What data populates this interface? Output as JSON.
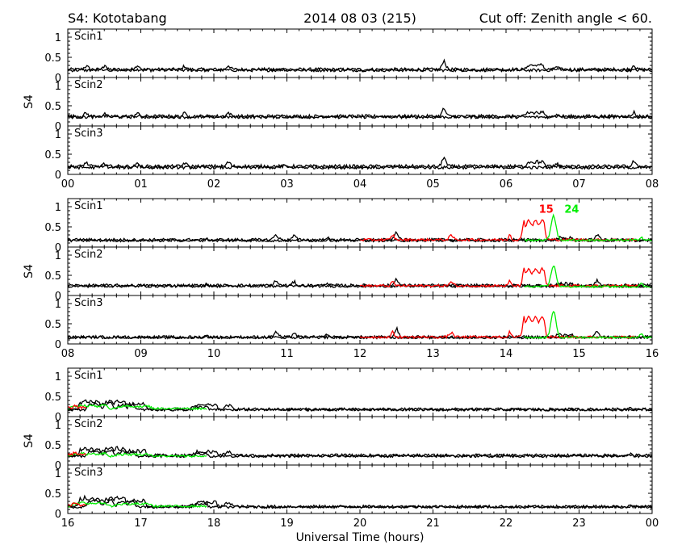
{
  "header": {
    "left": "S4: Kototabang",
    "center": "2014 08 03 (215)",
    "right": "Cut off: Zenith angle < 60."
  },
  "colors": {
    "background": "#ffffff",
    "axis": "#000000",
    "prn15": "#ff0000",
    "prn24": "#00ee00",
    "other": "#000000"
  },
  "chart_data": {
    "type": "line",
    "title": "S4: Kototabang",
    "date_label": "2014 08 03 (215)",
    "cutoff_label": "Cut off: Zenith angle < 60.",
    "xlabel": "Universal Time (hours)",
    "ylabel": "S4",
    "ylim": [
      0,
      1.2
    ],
    "yticks": [
      "1",
      "0.5",
      "0"
    ],
    "row_labels": [
      "Scin1",
      "Scin2",
      "Scin3"
    ],
    "annotations": [
      {
        "text": "15",
        "color": "#ff0000",
        "x": 14.45,
        "y": 0.85,
        "group": 1,
        "row": 0
      },
      {
        "text": "24",
        "color": "#00ee00",
        "x": 14.8,
        "y": 0.85,
        "group": 1,
        "row": 0
      }
    ],
    "groups": [
      {
        "x_range": [
          0,
          8
        ],
        "tick_labels": [
          "00",
          "01",
          "02",
          "03",
          "04",
          "05",
          "06",
          "07",
          "08"
        ],
        "series": [
          {
            "color": "#000000",
            "baseline": [
              0.2,
              0.24,
              0.2
            ],
            "x": [
              0,
              8
            ],
            "noise": 0.04,
            "bumps": [
              [
                0.25,
                0.06,
                0.08
              ],
              [
                1.6,
                0.05,
                0.08
              ],
              [
                2.2,
                0.05,
                0.1
              ],
              [
                5.15,
                0.05,
                0.22
              ],
              [
                6.4,
                0.1,
                0.12
              ],
              [
                7.75,
                0.04,
                0.12
              ]
            ]
          },
          {
            "color": "#000000",
            "baseline": [
              0.18,
              0.22,
              0.17
            ],
            "x": [
              0,
              8
            ],
            "noise": 0.035,
            "bumps": [
              [
                0.5,
                0.05,
                0.1
              ],
              [
                0.95,
                0.05,
                0.12
              ],
              [
                2.95,
                0.05,
                0.06
              ],
              [
                6.7,
                0.08,
                0.08
              ]
            ]
          }
        ]
      },
      {
        "x_range": [
          8,
          16
        ],
        "tick_labels": [
          "08",
          "09",
          "10",
          "11",
          "12",
          "13",
          "14",
          "15",
          "16"
        ],
        "series": [
          {
            "color": "#000000",
            "baseline": [
              0.18,
              0.25,
              0.17
            ],
            "x": [
              8,
              16
            ],
            "noise": 0.035,
            "bumps": [
              [
                10.85,
                0.06,
                0.12
              ],
              [
                11.1,
                0.05,
                0.1
              ],
              [
                12.5,
                0.05,
                0.2
              ],
              [
                15.25,
                0.05,
                0.14
              ]
            ]
          },
          {
            "color": "#000000",
            "baseline": [
              0.16,
              0.23,
              0.16
            ],
            "x": [
              8,
              16
            ],
            "noise": 0.03,
            "bumps": [
              [
                9.9,
                0.05,
                0.06
              ],
              [
                11.55,
                0.05,
                0.08
              ],
              [
                14.8,
                0.1,
                0.08
              ]
            ]
          },
          {
            "color": "#ff0000",
            "baseline": [
              0.18,
              0.24,
              0.17
            ],
            "x": [
              12,
              15.8
            ],
            "noise": 0.03,
            "bumps": [
              [
                12.45,
                0.04,
                0.12
              ],
              [
                13.25,
                0.06,
                0.1
              ],
              [
                14.05,
                0.03,
                0.15
              ],
              [
                14.38,
                0.13,
                0.5
              ]
            ]
          },
          {
            "color": "#00ee00",
            "baseline": [
              0.17,
              0.22,
              0.16
            ],
            "x": [
              14.25,
              16
            ],
            "noise": 0.025,
            "bumps": [
              [
                14.65,
                0.07,
                0.62
              ],
              [
                15.85,
                0.05,
                0.08
              ]
            ]
          }
        ]
      },
      {
        "x_range": [
          16,
          24
        ],
        "tick_labels": [
          "16",
          "17",
          "18",
          "19",
          "20",
          "21",
          "22",
          "23",
          "00"
        ],
        "series": [
          {
            "color": "#000000",
            "baseline": [
              0.18,
              0.24,
              0.17
            ],
            "x": [
              16,
              24
            ],
            "noise": 0.035,
            "bumps": [
              [
                16.3,
                0.12,
                0.22
              ],
              [
                16.65,
                0.12,
                0.22
              ],
              [
                16.95,
                0.1,
                0.15
              ],
              [
                17.9,
                0.12,
                0.12
              ],
              [
                18.2,
                0.08,
                0.1
              ]
            ]
          },
          {
            "color": "#000000",
            "baseline": [
              0.17,
              0.22,
              0.16
            ],
            "x": [
              16,
              24
            ],
            "noise": 0.03,
            "bumps": [
              [
                16.45,
                0.15,
                0.16
              ],
              [
                16.8,
                0.1,
                0.14
              ],
              [
                17.8,
                0.1,
                0.08
              ],
              [
                23.7,
                0.05,
                0.06
              ]
            ]
          },
          {
            "color": "#00ee00",
            "baseline": [
              0.2,
              0.22,
              0.18
            ],
            "x": [
              16,
              17.9
            ],
            "noise": 0.025,
            "bumps": [
              [
                16.3,
                0.2,
                0.08
              ],
              [
                16.9,
                0.2,
                0.06
              ]
            ]
          },
          {
            "color": "#ff0000",
            "baseline": [
              0.22,
              0.26,
              0.2
            ],
            "x": [
              16,
              16.25
            ],
            "noise": 0.03,
            "bumps": [
              [
                16.1,
                0.05,
                0.06
              ]
            ]
          }
        ]
      }
    ]
  }
}
